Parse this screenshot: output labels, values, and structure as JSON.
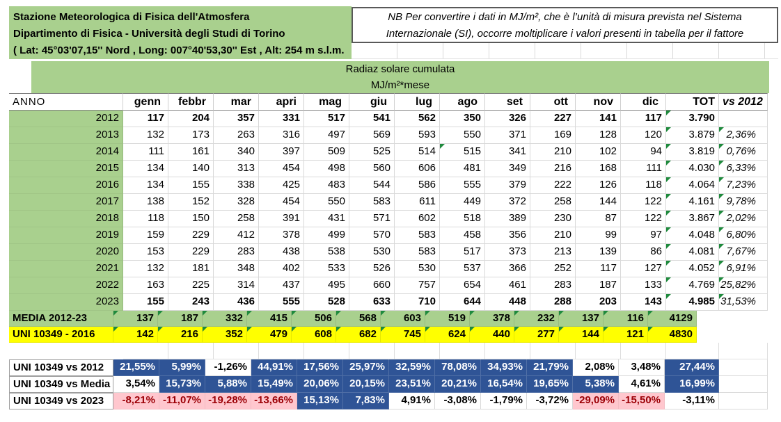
{
  "colors": {
    "green": "#A9D08E",
    "yellow": "#FFFF00",
    "blue": "#2F5496",
    "pink": "#FFC7CE",
    "pinktext": "#9C0006",
    "tri": "#1F8A3D"
  },
  "station": {
    "line1": "Stazione Meteorologica di Fisica dell'Atmosfera",
    "line2": "Dipartimento di Fisica - Università degli Studi di Torino",
    "line3": "( Lat: 45°03'07,15'' Nord , Long: 007°40'53,30'' Est , Alt: 254 m s.l.m."
  },
  "note": {
    "line1": "NB  Per convertire i dati in MJ/m², che è l’unità di misura prevista nel Sistema",
    "line2": "Internazionale (SI), occorre moltiplicare i valori presenti in tabella per il fattore"
  },
  "title": {
    "line1": "Radiaz solare cumulata",
    "line2": "MJ/m²*mese"
  },
  "header": {
    "anno": "ANNO",
    "months": [
      "genn",
      "febbr",
      "mar",
      "apri",
      "mag",
      "giu",
      "lug",
      "ago",
      "set",
      "ott",
      "nov",
      "dic"
    ],
    "tot": "TOT",
    "vs": "vs 2012"
  },
  "years": [
    {
      "label": "2012",
      "bold": true,
      "months": [
        "117",
        "204",
        "357",
        "331",
        "517",
        "541",
        "562",
        "350",
        "326",
        "227",
        "141",
        "117"
      ],
      "tot": "3.790",
      "vs": "",
      "tri_tot": true,
      "tri_vs": false,
      "tri_months": []
    },
    {
      "label": "2013",
      "bold": false,
      "months": [
        "132",
        "173",
        "263",
        "316",
        "497",
        "569",
        "593",
        "550",
        "371",
        "169",
        "128",
        "120"
      ],
      "tot": "3.879",
      "vs": "2,36%",
      "tri_tot": true,
      "tri_vs": true,
      "tri_months": []
    },
    {
      "label": "2014",
      "bold": false,
      "months": [
        "111",
        "161",
        "340",
        "397",
        "509",
        "525",
        "514",
        "515",
        "341",
        "210",
        "102",
        "94"
      ],
      "tot": "3.819",
      "vs": "0,76%",
      "tri_tot": true,
      "tri_vs": true,
      "tri_months": [
        7
      ]
    },
    {
      "label": "2015",
      "bold": false,
      "months": [
        "134",
        "140",
        "313",
        "454",
        "498",
        "560",
        "606",
        "481",
        "349",
        "216",
        "168",
        "111"
      ],
      "tot": "4.030",
      "vs": "6,33%",
      "tri_tot": true,
      "tri_vs": true,
      "tri_months": []
    },
    {
      "label": "2016",
      "bold": false,
      "months": [
        "134",
        "155",
        "338",
        "425",
        "483",
        "544",
        "586",
        "555",
        "379",
        "222",
        "126",
        "118"
      ],
      "tot": "4.064",
      "vs": "7,23%",
      "tri_tot": true,
      "tri_vs": true,
      "tri_months": []
    },
    {
      "label": "2017",
      "bold": false,
      "months": [
        "138",
        "152",
        "328",
        "454",
        "550",
        "583",
        "611",
        "449",
        "372",
        "258",
        "144",
        "122"
      ],
      "tot": "4.161",
      "vs": "9,78%",
      "tri_tot": true,
      "tri_vs": true,
      "tri_months": []
    },
    {
      "label": "2018",
      "bold": false,
      "months": [
        "118",
        "150",
        "258",
        "391",
        "431",
        "571",
        "602",
        "518",
        "389",
        "230",
        "87",
        "122"
      ],
      "tot": "3.867",
      "vs": "2,02%",
      "tri_tot": true,
      "tri_vs": true,
      "tri_months": []
    },
    {
      "label": "2019",
      "bold": false,
      "months": [
        "159",
        "229",
        "412",
        "378",
        "499",
        "570",
        "583",
        "458",
        "356",
        "210",
        "99",
        "97"
      ],
      "tot": "4.048",
      "vs": "6,80%",
      "tri_tot": true,
      "tri_vs": true,
      "tri_months": []
    },
    {
      "label": "2020",
      "bold": false,
      "months": [
        "153",
        "229",
        "283",
        "438",
        "538",
        "530",
        "583",
        "517",
        "373",
        "213",
        "139",
        "86"
      ],
      "tot": "4.081",
      "vs": "7,67%",
      "tri_tot": true,
      "tri_vs": true,
      "tri_months": []
    },
    {
      "label": "2021",
      "bold": false,
      "months": [
        "132",
        "181",
        "348",
        "402",
        "533",
        "526",
        "530",
        "537",
        "366",
        "252",
        "117",
        "127"
      ],
      "tot": "4.052",
      "vs": "6,91%",
      "tri_tot": true,
      "tri_vs": true,
      "tri_months": []
    },
    {
      "label": "2022",
      "bold": false,
      "months": [
        "163",
        "225",
        "314",
        "437",
        "495",
        "660",
        "757",
        "654",
        "461",
        "283",
        "187",
        "133"
      ],
      "tot": "4.769",
      "vs": "25,82%",
      "tri_tot": true,
      "tri_vs": true,
      "tri_months": []
    },
    {
      "label": "2023",
      "bold": true,
      "months": [
        "155",
        "243",
        "436",
        "555",
        "528",
        "633",
        "710",
        "644",
        "448",
        "288",
        "203",
        "143"
      ],
      "tot": "4.985",
      "vs": "31,53%",
      "tri_tot": true,
      "tri_vs": true,
      "tri_months": []
    }
  ],
  "summary_rows": [
    {
      "label": "MEDIA 2012-23",
      "bg": "green",
      "months": [
        "137",
        "187",
        "332",
        "415",
        "506",
        "568",
        "603",
        "519",
        "378",
        "232",
        "137",
        "116"
      ],
      "tot": "4129"
    },
    {
      "label": "UNI 10349 - 2016",
      "bg": "yellow",
      "months": [
        "142",
        "216",
        "352",
        "479",
        "608",
        "682",
        "745",
        "624",
        "440",
        "277",
        "144",
        "121"
      ],
      "tot": "4830"
    }
  ],
  "comparison_rows": [
    {
      "label": "UNI 10349 vs 2012",
      "cells": [
        {
          "v": "21,55%",
          "s": "blue"
        },
        {
          "v": "5,99%",
          "s": "blue"
        },
        {
          "v": "-1,26%",
          "s": "white"
        },
        {
          "v": "44,91%",
          "s": "blue"
        },
        {
          "v": "17,56%",
          "s": "blue"
        },
        {
          "v": "25,97%",
          "s": "blue"
        },
        {
          "v": "32,59%",
          "s": "blue"
        },
        {
          "v": "78,08%",
          "s": "blue"
        },
        {
          "v": "34,93%",
          "s": "blue"
        },
        {
          "v": "21,79%",
          "s": "blue"
        },
        {
          "v": "2,08%",
          "s": "white"
        },
        {
          "v": "3,48%",
          "s": "white"
        }
      ],
      "tot": {
        "v": "27,44%",
        "s": "blue"
      }
    },
    {
      "label": "UNI 10349 vs Media",
      "cells": [
        {
          "v": "3,54%",
          "s": "white"
        },
        {
          "v": "15,73%",
          "s": "blue"
        },
        {
          "v": "5,88%",
          "s": "blue"
        },
        {
          "v": "15,49%",
          "s": "blue"
        },
        {
          "v": "20,06%",
          "s": "blue"
        },
        {
          "v": "20,15%",
          "s": "blue"
        },
        {
          "v": "23,51%",
          "s": "blue"
        },
        {
          "v": "20,21%",
          "s": "blue"
        },
        {
          "v": "16,54%",
          "s": "blue"
        },
        {
          "v": "19,65%",
          "s": "blue"
        },
        {
          "v": "5,38%",
          "s": "blue"
        },
        {
          "v": "4,61%",
          "s": "white"
        }
      ],
      "tot": {
        "v": "16,99%",
        "s": "blue"
      }
    },
    {
      "label": "UNI 10349 vs 2023",
      "cells": [
        {
          "v": "-8,21%",
          "s": "pink"
        },
        {
          "v": "-11,07%",
          "s": "pink"
        },
        {
          "v": "-19,28%",
          "s": "pink"
        },
        {
          "v": "-13,66%",
          "s": "pink"
        },
        {
          "v": "15,13%",
          "s": "blue"
        },
        {
          "v": "7,83%",
          "s": "blue"
        },
        {
          "v": "4,91%",
          "s": "white"
        },
        {
          "v": "-3,08%",
          "s": "white"
        },
        {
          "v": "-1,79%",
          "s": "white"
        },
        {
          "v": "-3,72%",
          "s": "white"
        },
        {
          "v": "-29,09%",
          "s": "pink"
        },
        {
          "v": "-15,50%",
          "s": "pink"
        }
      ],
      "tot": {
        "v": "-3,11%",
        "s": "white"
      }
    }
  ]
}
